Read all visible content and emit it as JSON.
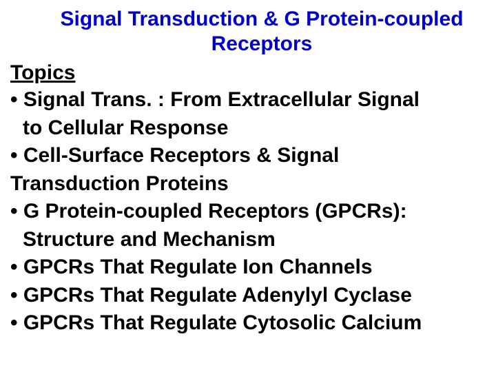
{
  "title": {
    "text": "Signal Transduction & G Protein-coupled Receptors",
    "color": "#0000cc",
    "fontsize": 30,
    "fontweight": "bold"
  },
  "topics_heading": {
    "text": "Topics",
    "color": "#000000",
    "fontsize": 30,
    "underline": true
  },
  "body_style": {
    "color": "#000000",
    "fontsize": 30,
    "fontweight": "bold",
    "bullet_char": "•"
  },
  "bullets": [
    {
      "line1": "• Signal Trans. : From Extracellular Signal",
      "line2": "to Cellular Response",
      "line2_indent": true
    },
    {
      "line1": "• Cell-Surface Receptors & Signal",
      "line2": "Transduction Proteins",
      "line2_indent": false
    },
    {
      "line1": "• G Protein-coupled Receptors (GPCRs):",
      "line2": "Structure and Mechanism",
      "line2_indent": true
    },
    {
      "line1": "• GPCRs That Regulate Ion Channels",
      "line2": "",
      "line2_indent": false
    },
    {
      "line1": "• GPCRs That Regulate Adenylyl Cyclase",
      "line2": "",
      "line2_indent": false
    },
    {
      "line1": "• GPCRs That Regulate Cytosolic Calcium",
      "line2": "",
      "line2_indent": false
    }
  ]
}
